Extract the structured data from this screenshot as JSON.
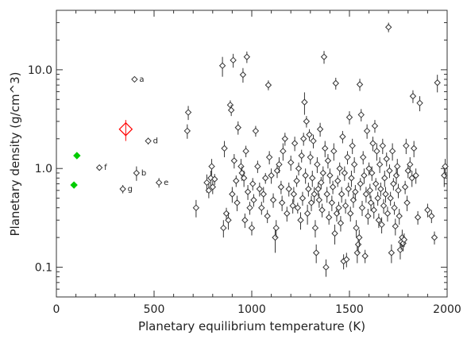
{
  "chart_data": {
    "type": "scatter",
    "xlabel": "Planetary equilibrium temperature (K)",
    "ylabel": "Planetary density (g/cm^3)",
    "xlim": [
      0,
      2000
    ],
    "ylim": [
      0.05,
      40
    ],
    "yscale": "log",
    "x_ticks": [
      0,
      500,
      1000,
      1500,
      2000
    ],
    "x_tick_labels": [
      "0",
      "500",
      "1000",
      "1500",
      "2000"
    ],
    "y_ticks": [
      0.1,
      1.0,
      10.0
    ],
    "y_tick_labels": [
      "0.1",
      "1.0",
      "10.0"
    ],
    "grid": false,
    "legend": "none",
    "colors": {
      "points": "#333333",
      "highlight": "#ff0000",
      "green": "#00cc00"
    },
    "series": [
      {
        "marker": "open-diamond",
        "points": [
          [
            400,
            8.0,
            0.3
          ],
          [
            470,
            1.9,
            0.15
          ],
          [
            410,
            0.9,
            0.15
          ],
          [
            525,
            0.72,
            0.08
          ],
          [
            340,
            0.62,
            0.06
          ],
          [
            220,
            1.02,
            0.05
          ],
          [
            670,
            2.4,
            0.4
          ],
          [
            675,
            3.7,
            0.6
          ],
          [
            715,
            0.4,
            0.08
          ],
          [
            770,
            0.72,
            0.15
          ],
          [
            780,
            0.6,
            0.1
          ],
          [
            790,
            0.8,
            0.15
          ],
          [
            795,
            1.05,
            0.2
          ],
          [
            800,
            0.65,
            0.1
          ],
          [
            810,
            0.78,
            0.1
          ],
          [
            850,
            11.0,
            2.5
          ],
          [
            855,
            0.25,
            0.05
          ],
          [
            860,
            1.6,
            0.3
          ],
          [
            870,
            0.35,
            0.05
          ],
          [
            880,
            0.3,
            0.06
          ],
          [
            890,
            4.4,
            0.5
          ],
          [
            895,
            3.9,
            0.5
          ],
          [
            900,
            0.55,
            0.1
          ],
          [
            905,
            12.5,
            2.0
          ],
          [
            910,
            1.2,
            0.2
          ],
          [
            920,
            0.75,
            0.1
          ],
          [
            925,
            0.45,
            0.08
          ],
          [
            930,
            2.6,
            0.4
          ],
          [
            945,
            1.05,
            0.2
          ],
          [
            950,
            0.9,
            0.15
          ],
          [
            955,
            8.9,
            1.5
          ],
          [
            960,
            0.8,
            0.15
          ],
          [
            965,
            0.3,
            0.05
          ],
          [
            970,
            1.5,
            0.2
          ],
          [
            975,
            13.5,
            1.8
          ],
          [
            980,
            0.58,
            0.1
          ],
          [
            990,
            0.4,
            0.06
          ],
          [
            1000,
            0.25,
            0.04
          ],
          [
            1005,
            0.7,
            0.1
          ],
          [
            1010,
            0.48,
            0.07
          ],
          [
            1020,
            2.4,
            0.3
          ],
          [
            1030,
            1.05,
            0.15
          ],
          [
            1040,
            0.62,
            0.1
          ],
          [
            1050,
            0.4,
            0.06
          ],
          [
            1060,
            0.55,
            0.1
          ],
          [
            1070,
            0.8,
            0.1
          ],
          [
            1080,
            0.33,
            0.05
          ],
          [
            1085,
            7.0,
            0.8
          ],
          [
            1090,
            1.3,
            0.2
          ],
          [
            1100,
            0.85,
            0.15
          ],
          [
            1110,
            0.48,
            0.08
          ],
          [
            1120,
            0.2,
            0.06
          ],
          [
            1125,
            0.25,
            0.05
          ],
          [
            1130,
            0.95,
            0.15
          ],
          [
            1140,
            1.1,
            0.2
          ],
          [
            1150,
            0.65,
            0.1
          ],
          [
            1155,
            0.45,
            0.08
          ],
          [
            1160,
            1.5,
            0.3
          ],
          [
            1170,
            2.0,
            0.3
          ],
          [
            1180,
            0.35,
            0.06
          ],
          [
            1190,
            0.62,
            0.1
          ],
          [
            1200,
            1.15,
            0.2
          ],
          [
            1210,
            0.42,
            0.07
          ],
          [
            1215,
            0.55,
            0.1
          ],
          [
            1220,
            1.8,
            0.3
          ],
          [
            1230,
            0.75,
            0.1
          ],
          [
            1235,
            0.4,
            0.05
          ],
          [
            1240,
            1.0,
            0.15
          ],
          [
            1250,
            0.3,
            0.06
          ],
          [
            1255,
            1.35,
            0.2
          ],
          [
            1260,
            0.5,
            0.08
          ],
          [
            1265,
            2.0,
            0.3
          ],
          [
            1270,
            4.7,
            1.2
          ],
          [
            1275,
            0.85,
            0.15
          ],
          [
            1280,
            3.0,
            0.4
          ],
          [
            1285,
            0.35,
            0.08
          ],
          [
            1290,
            0.62,
            0.1
          ],
          [
            1295,
            2.2,
            0.3
          ],
          [
            1300,
            1.3,
            0.2
          ],
          [
            1305,
            0.45,
            0.08
          ],
          [
            1310,
            0.8,
            0.15
          ],
          [
            1315,
            1.9,
            0.3
          ],
          [
            1320,
            0.55,
            0.1
          ],
          [
            1325,
            0.25,
            0.05
          ],
          [
            1330,
            0.14,
            0.03
          ],
          [
            1335,
            1.1,
            0.2
          ],
          [
            1340,
            0.62,
            0.1
          ],
          [
            1345,
            0.48,
            0.08
          ],
          [
            1350,
            2.5,
            0.4
          ],
          [
            1355,
            0.72,
            0.1
          ],
          [
            1360,
            0.38,
            0.06
          ],
          [
            1365,
            0.9,
            0.15
          ],
          [
            1370,
            13.5,
            2.0
          ],
          [
            1375,
            1.6,
            0.3
          ],
          [
            1380,
            0.1,
            0.02
          ],
          [
            1385,
            0.55,
            0.1
          ],
          [
            1390,
            1.2,
            0.2
          ],
          [
            1395,
            0.32,
            0.05
          ],
          [
            1400,
            0.85,
            0.15
          ],
          [
            1410,
            0.45,
            0.08
          ],
          [
            1415,
            0.65,
            0.1
          ],
          [
            1420,
            1.5,
            0.3
          ],
          [
            1425,
            0.22,
            0.05
          ],
          [
            1430,
            7.3,
            1.0
          ],
          [
            1435,
            0.35,
            0.06
          ],
          [
            1440,
            0.75,
            0.1
          ],
          [
            1445,
            0.4,
            0.06
          ],
          [
            1450,
            1.0,
            0.15
          ],
          [
            1455,
            0.28,
            0.05
          ],
          [
            1460,
            0.55,
            0.1
          ],
          [
            1465,
            2.1,
            0.3
          ],
          [
            1470,
            0.115,
            0.02
          ],
          [
            1475,
            0.9,
            0.15
          ],
          [
            1480,
            0.42,
            0.07
          ],
          [
            1485,
            0.12,
            0.02
          ],
          [
            1490,
            1.3,
            0.2
          ],
          [
            1495,
            0.62,
            0.1
          ],
          [
            1500,
            3.3,
            0.5
          ],
          [
            1505,
            0.35,
            0.06
          ],
          [
            1510,
            0.8,
            0.15
          ],
          [
            1515,
            1.7,
            0.3
          ],
          [
            1520,
            0.48,
            0.08
          ],
          [
            1525,
            1.1,
            0.2
          ],
          [
            1530,
            0.58,
            0.1
          ],
          [
            1535,
            0.25,
            0.05
          ],
          [
            1540,
            0.14,
            0.03
          ],
          [
            1545,
            0.17,
            0.03
          ],
          [
            1550,
            0.2,
            0.04
          ],
          [
            1553,
            7.1,
            1.0
          ],
          [
            1556,
            0.7,
            0.1
          ],
          [
            1560,
            3.5,
            0.5
          ],
          [
            1565,
            0.4,
            0.07
          ],
          [
            1570,
            1.3,
            0.2
          ],
          [
            1575,
            0.85,
            0.15
          ],
          [
            1580,
            0.13,
            0.02
          ],
          [
            1585,
            0.55,
            0.1
          ],
          [
            1590,
            2.4,
            0.4
          ],
          [
            1595,
            0.33,
            0.06
          ],
          [
            1600,
            1.0,
            0.15
          ],
          [
            1605,
            0.6,
            0.1
          ],
          [
            1610,
            0.45,
            0.08
          ],
          [
            1615,
            0.9,
            0.15
          ],
          [
            1620,
            1.8,
            0.3
          ],
          [
            1625,
            0.38,
            0.07
          ],
          [
            1630,
            2.7,
            0.4
          ],
          [
            1635,
            0.7,
            0.1
          ],
          [
            1640,
            1.5,
            0.3
          ],
          [
            1645,
            0.5,
            0.08
          ],
          [
            1650,
            0.3,
            0.05
          ],
          [
            1655,
            1.1,
            0.2
          ],
          [
            1660,
            0.62,
            0.1
          ],
          [
            1665,
            0.27,
            0.05
          ],
          [
            1670,
            1.7,
            0.3
          ],
          [
            1675,
            0.42,
            0.07
          ],
          [
            1680,
            0.8,
            0.15
          ],
          [
            1685,
            0.55,
            0.1
          ],
          [
            1690,
            1.25,
            0.2
          ],
          [
            1695,
            0.35,
            0.06
          ],
          [
            1700,
            27.0,
            3.0
          ],
          [
            1705,
            0.95,
            0.15
          ],
          [
            1710,
            0.5,
            0.08
          ],
          [
            1715,
            0.14,
            0.03
          ],
          [
            1720,
            1.5,
            0.3
          ],
          [
            1725,
            0.7,
            0.1
          ],
          [
            1730,
            0.4,
            0.06
          ],
          [
            1735,
            0.26,
            0.05
          ],
          [
            1740,
            0.85,
            0.15
          ],
          [
            1745,
            1.05,
            0.2
          ],
          [
            1750,
            0.6,
            0.1
          ],
          [
            1755,
            0.33,
            0.06
          ],
          [
            1760,
            0.15,
            0.03
          ],
          [
            1765,
            0.18,
            0.03
          ],
          [
            1770,
            0.2,
            0.04
          ],
          [
            1775,
            0.175,
            0.03
          ],
          [
            1780,
            0.19,
            0.03
          ],
          [
            1785,
            0.65,
            0.1
          ],
          [
            1790,
            1.7,
            0.3
          ],
          [
            1795,
            0.45,
            0.08
          ],
          [
            1800,
            0.95,
            0.15
          ],
          [
            1810,
            1.1,
            0.2
          ],
          [
            1820,
            0.8,
            0.15
          ],
          [
            1825,
            5.4,
            0.8
          ],
          [
            1830,
            1.6,
            0.3
          ],
          [
            1840,
            0.85,
            0.15
          ],
          [
            1850,
            0.32,
            0.05
          ],
          [
            1860,
            4.6,
            0.8
          ],
          [
            1900,
            0.38,
            0.06
          ],
          [
            1920,
            0.33,
            0.05
          ],
          [
            1935,
            0.2,
            0.03
          ],
          [
            1950,
            7.4,
            1.5
          ],
          [
            1985,
            0.85,
            0.2
          ],
          [
            1990,
            1.05,
            0.2
          ]
        ]
      },
      {
        "marker": "open-diamond-large",
        "color_key": "highlight",
        "points": [
          [
            355,
            2.5,
            0.6
          ]
        ]
      },
      {
        "marker": "filled-diamond",
        "color_key": "green",
        "points": [
          [
            105,
            1.35
          ],
          [
            90,
            0.68
          ]
        ]
      }
    ],
    "annotations": [
      {
        "text": "a",
        "x": 400,
        "y": 8.0
      },
      {
        "text": "d",
        "x": 470,
        "y": 1.9
      },
      {
        "text": "b",
        "x": 410,
        "y": 0.9
      },
      {
        "text": "e",
        "x": 525,
        "y": 0.72
      },
      {
        "text": "g",
        "x": 340,
        "y": 0.62
      },
      {
        "text": "f",
        "x": 220,
        "y": 1.02
      }
    ]
  }
}
